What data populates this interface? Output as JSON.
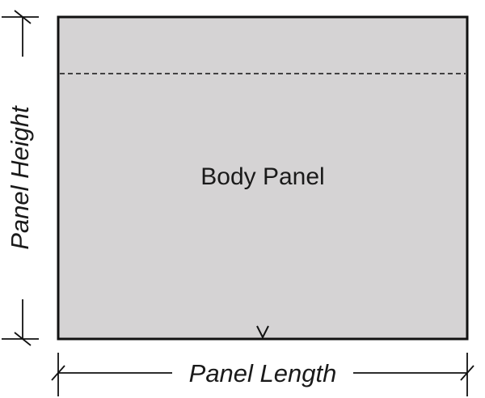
{
  "diagram": {
    "panel_label": "Body Panel",
    "height_label": "Panel Height",
    "length_label": "Panel Length",
    "colors": {
      "panel_fill": "#d5d3d4",
      "stroke": "#111111",
      "background": "#ffffff"
    }
  }
}
